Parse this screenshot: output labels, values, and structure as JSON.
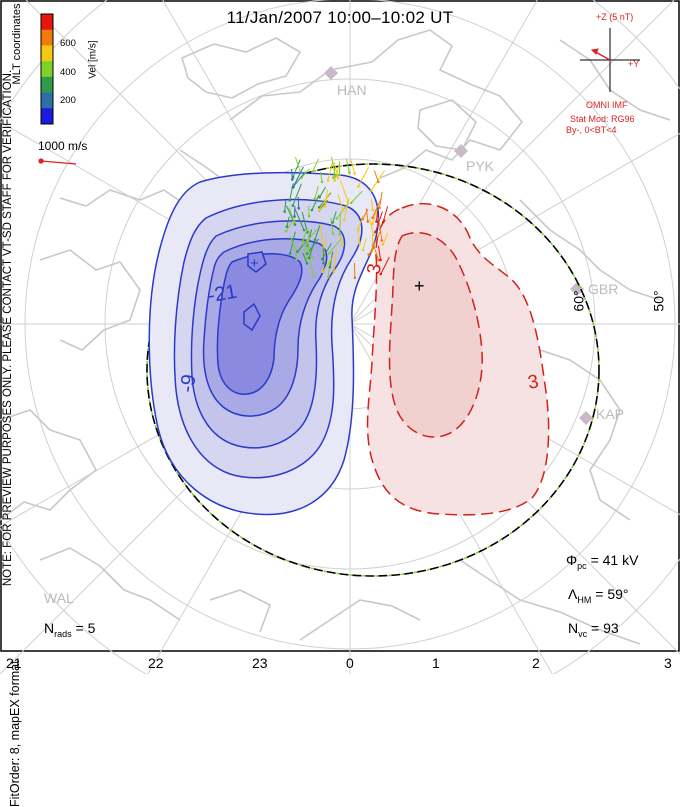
{
  "title": "11/Jan/2007 10:00–10:02 UT",
  "note": "NOTE: FOR PREVIEW PURPOSES ONLY. PLEASE CONTACT VT-SD STAFF FOR VERIFICATION.",
  "fit_order": "FitOrder: 8, mapEX format",
  "coordinates": "MLT coordinates",
  "velocity_scale": {
    "label": "Vel [m/s]",
    "ticks": [
      "600",
      "400",
      "200"
    ],
    "colors": [
      "#e8140e",
      "#f07a0c",
      "#f5c812",
      "#7fd12a",
      "#2f9a4a",
      "#2e6fa8",
      "#1b1be0"
    ]
  },
  "reference_vector": "1000 m/s",
  "imf": {
    "z_label": "+Z (5 nT)",
    "y_label": "+Y",
    "source": "OMNI IMF",
    "model": "Stat Mod: RG96",
    "condition": "By-, 0<BT<4"
  },
  "contours": {
    "negative_labels": [
      "-21",
      "-9"
    ],
    "positive_labels": [
      "3",
      "3"
    ],
    "negative_color": "#2a3acb",
    "positive_color": "#d2221a"
  },
  "stations": [
    "HAN",
    "PYK",
    "GBR",
    "KAP",
    "WAL"
  ],
  "latitude_labels": [
    "60°",
    "50°"
  ],
  "stats": {
    "phi_pc": {
      "symbol": "Φ",
      "sub": "pc",
      "value": "= 41 kV"
    },
    "lambda_hm": {
      "symbol": "Λ",
      "sub": "HM",
      "value": "= 59°"
    },
    "n_vc": {
      "symbol": "N",
      "sub": "vc",
      "value": "= 93"
    },
    "n_rads": {
      "symbol": "N",
      "sub": "rads",
      "value": "= 5"
    }
  },
  "mlt_axis": [
    "21",
    "22",
    "23",
    "0",
    "1",
    "2",
    "3"
  ]
}
